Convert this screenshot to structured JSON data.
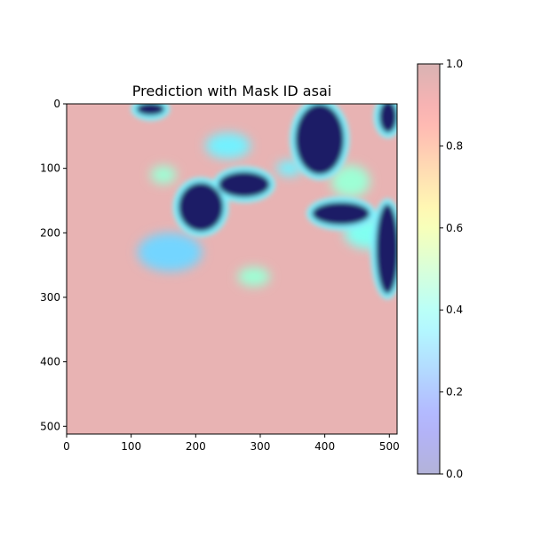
{
  "chart_data": {
    "type": "heatmap",
    "title": "Prediction with Mask ID asai",
    "x_ticks": [
      0,
      100,
      200,
      300,
      400,
      500
    ],
    "y_ticks": [
      0,
      100,
      200,
      300,
      400,
      500
    ],
    "x_tick_labels": [
      "0",
      "100",
      "200",
      "300",
      "400",
      "500"
    ],
    "y_tick_labels": [
      "0",
      "100",
      "200",
      "300",
      "400",
      "500"
    ],
    "xlim": [
      0,
      512
    ],
    "ylim": [
      512,
      0
    ],
    "image_size": [
      512,
      512
    ],
    "colorbar": {
      "colormap": "jet",
      "alpha": 0.3,
      "range": [
        0.0,
        1.0
      ],
      "ticks": [
        0.0,
        0.2,
        0.4,
        0.6,
        0.8,
        1.0
      ],
      "tick_labels": [
        "0.0",
        "0.2",
        "0.4",
        "0.6",
        "0.8",
        "1.0"
      ]
    },
    "description_regions": {
      "background_value": 0.95,
      "low_regions": [
        {
          "cx": 130,
          "cy": 8,
          "rx": 22,
          "ry": 10,
          "value": 0.0
        },
        {
          "cx": 208,
          "cy": 160,
          "rx": 35,
          "ry": 38,
          "value": 0.0
        },
        {
          "cx": 275,
          "cy": 125,
          "rx": 40,
          "ry": 20,
          "value": 0.0
        },
        {
          "cx": 392,
          "cy": 55,
          "rx": 38,
          "ry": 55,
          "value": 0.0
        },
        {
          "cx": 498,
          "cy": 20,
          "rx": 14,
          "ry": 25,
          "value": 0.0
        },
        {
          "cx": 425,
          "cy": 170,
          "rx": 45,
          "ry": 18,
          "value": 0.0
        },
        {
          "cx": 497,
          "cy": 225,
          "rx": 18,
          "ry": 70,
          "value": 0.0
        }
      ],
      "mid_regions": [
        {
          "cx": 160,
          "cy": 230,
          "rx": 50,
          "ry": 30,
          "value": 0.3
        },
        {
          "cx": 250,
          "cy": 65,
          "rx": 35,
          "ry": 20,
          "value": 0.35
        },
        {
          "cx": 290,
          "cy": 268,
          "rx": 25,
          "ry": 15,
          "value": 0.45
        },
        {
          "cx": 345,
          "cy": 100,
          "rx": 20,
          "ry": 12,
          "value": 0.35
        },
        {
          "cx": 440,
          "cy": 120,
          "rx": 30,
          "ry": 25,
          "value": 0.45
        },
        {
          "cx": 470,
          "cy": 200,
          "rx": 40,
          "ry": 25,
          "value": 0.4
        },
        {
          "cx": 150,
          "cy": 110,
          "rx": 20,
          "ry": 14,
          "value": 0.45
        }
      ]
    }
  }
}
